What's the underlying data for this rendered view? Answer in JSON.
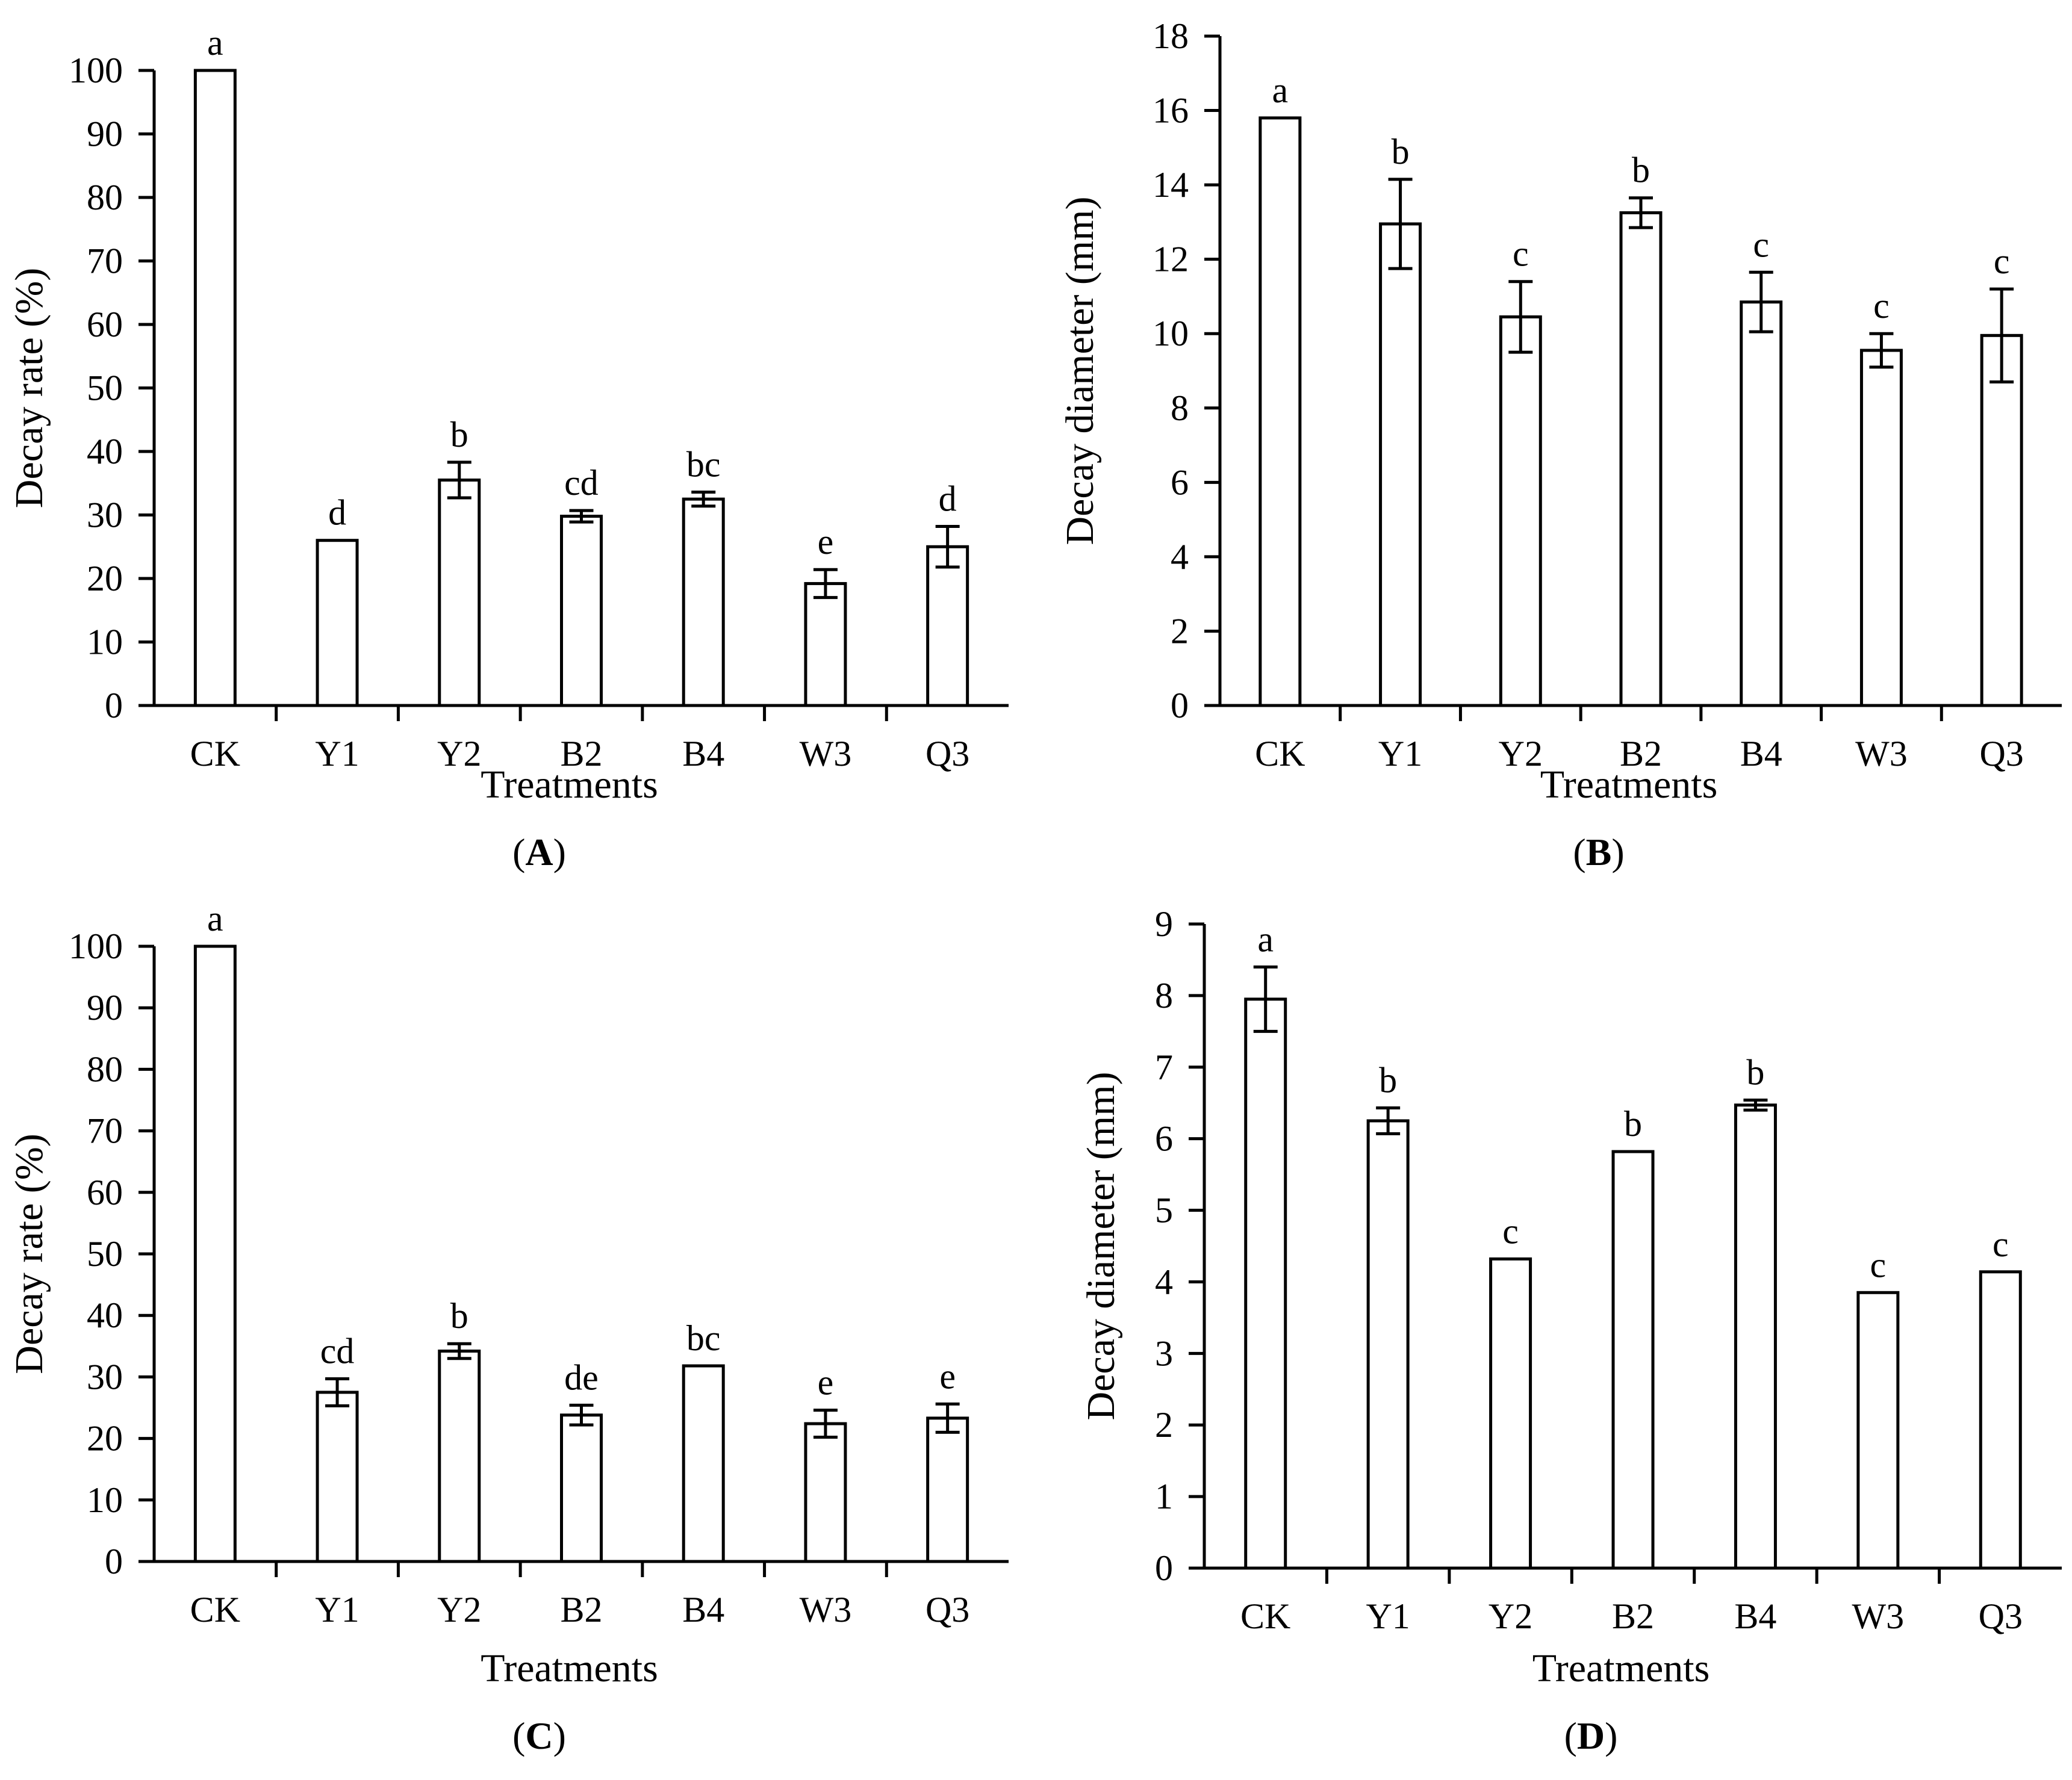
{
  "figure": {
    "panels": [
      "A",
      "B",
      "C",
      "D"
    ]
  },
  "chart_data": [
    {
      "panel": "A",
      "panel_label": "A",
      "type": "bar",
      "categories": [
        "CK",
        "Y1",
        "Y2",
        "B2",
        "B4",
        "W3",
        "Q3"
      ],
      "values": [
        100,
        26,
        35.5,
        29.8,
        32.5,
        19.2,
        25
      ],
      "errors": [
        0,
        0,
        2.8,
        0.9,
        1.1,
        2.2,
        3.2
      ],
      "significance": [
        "a",
        "d",
        "b",
        "cd",
        "bc",
        "e",
        "d"
      ],
      "title": "",
      "xlabel": "Treatments",
      "ylabel": "Decay rate (%)",
      "ylim": [
        0,
        100
      ],
      "yticks": [
        0,
        10,
        20,
        30,
        40,
        50,
        60,
        70,
        80,
        90,
        100
      ],
      "grid": false,
      "bar_fill": "#ffffff",
      "bar_stroke": "#000000"
    },
    {
      "panel": "B",
      "panel_label": "B",
      "type": "bar",
      "categories": [
        "CK",
        "Y1",
        "Y2",
        "B2",
        "B4",
        "W3",
        "Q3"
      ],
      "values": [
        15.8,
        12.95,
        10.45,
        13.25,
        10.85,
        9.55,
        9.95
      ],
      "errors": [
        0,
        1.2,
        0.95,
        0.4,
        0.8,
        0.45,
        1.25
      ],
      "significance": [
        "a",
        "b",
        "c",
        "b",
        "c",
        "c",
        "c"
      ],
      "title": "",
      "xlabel": "Treatments",
      "ylabel": "Decay diameter (mm)",
      "ylim": [
        0,
        18
      ],
      "yticks": [
        0,
        2,
        4,
        6,
        8,
        10,
        12,
        14,
        16,
        18
      ],
      "grid": false,
      "bar_fill": "#ffffff",
      "bar_stroke": "#000000"
    },
    {
      "panel": "C",
      "panel_label": "C",
      "type": "bar",
      "categories": [
        "CK",
        "Y1",
        "Y2",
        "B2",
        "B4",
        "W3",
        "Q3"
      ],
      "values": [
        100,
        27.5,
        34.2,
        23.8,
        31.8,
        22.4,
        23.3
      ],
      "errors": [
        0,
        2.2,
        1.2,
        1.6,
        0,
        2.2,
        2.3
      ],
      "significance": [
        "a",
        "cd",
        "b",
        "de",
        "bc",
        "e",
        "e"
      ],
      "title": "",
      "xlabel": "Treatments",
      "ylabel": "Decay rate (%)",
      "ylim": [
        0,
        100
      ],
      "yticks": [
        0,
        10,
        20,
        30,
        40,
        50,
        60,
        70,
        80,
        90,
        100
      ],
      "grid": false,
      "bar_fill": "#ffffff",
      "bar_stroke": "#000000"
    },
    {
      "panel": "D",
      "panel_label": "D",
      "type": "bar",
      "categories": [
        "CK",
        "Y1",
        "Y2",
        "B2",
        "B4",
        "W3",
        "Q3"
      ],
      "values": [
        7.95,
        6.25,
        4.32,
        5.82,
        6.47,
        3.85,
        4.14
      ],
      "errors": [
        0.45,
        0.18,
        0,
        0,
        0.07,
        0,
        0
      ],
      "significance": [
        "a",
        "b",
        "c",
        "b",
        "b",
        "c",
        "c"
      ],
      "title": "",
      "xlabel": "Treatments",
      "ylabel": "Decay diameter (mm)",
      "ylim": [
        0,
        9
      ],
      "yticks": [
        0,
        1,
        2,
        3,
        4,
        5,
        6,
        7,
        8,
        9
      ],
      "grid": false,
      "bar_fill": "#ffffff",
      "bar_stroke": "#000000"
    }
  ]
}
